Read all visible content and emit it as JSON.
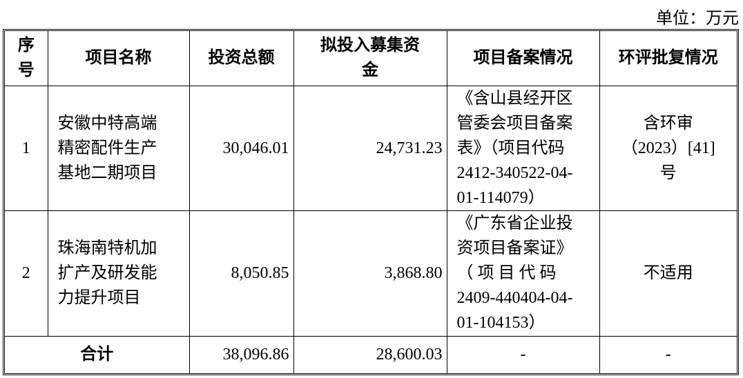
{
  "unit_label": "单位：万元",
  "headers": {
    "no_lines": [
      "序",
      "号"
    ],
    "name": "项目名称",
    "total": "投资总额",
    "raise_lines": [
      "拟投入募集资",
      "金"
    ],
    "record": "项目备案情况",
    "env": "环评批复情况"
  },
  "rows": [
    {
      "no": "1",
      "name_lines": [
        "安徽中特高端",
        "精密配件生产",
        "基地二期项目"
      ],
      "total": "30,046.01",
      "raise": "24,731.23",
      "record_lines": [
        "《含山县经开区",
        "管委会项目备案",
        "表》（项目代码",
        "2412-340522-04-",
        "01-114079）"
      ],
      "env_lines": [
        "含环审",
        "（2023）[41]",
        "号"
      ]
    },
    {
      "no": "2",
      "name_lines": [
        "珠海南特机加",
        "扩产及研发能",
        "力提升项目"
      ],
      "total": "8,050.85",
      "raise": "3,868.80",
      "record_lines": [
        "《广东省企业投",
        "资项目备案证》",
        "（ 项 目 代 码",
        "2409-440404-04-",
        "01-104153）"
      ],
      "env_lines": [
        "不适用"
      ]
    }
  ],
  "total_row": {
    "label": "合计",
    "total": "38,096.86",
    "raise": "28,600.03",
    "record": "-",
    "env": "-"
  }
}
